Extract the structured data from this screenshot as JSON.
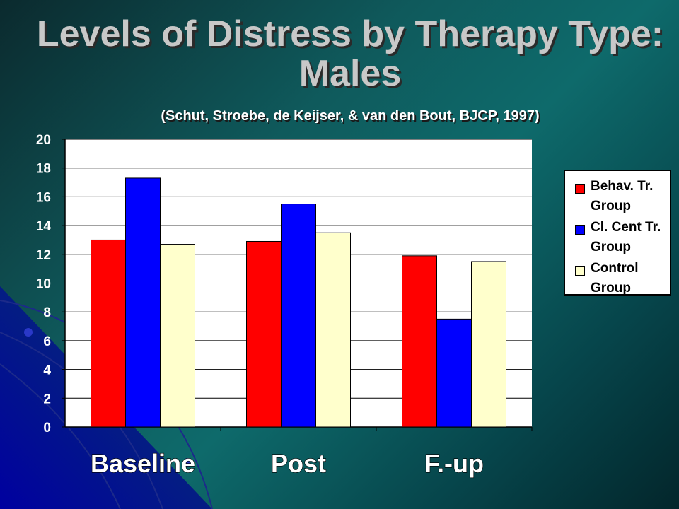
{
  "slide": {
    "title": "Levels of Distress by Therapy Type: Males",
    "subtitle": "(Schut, Stroebe, de Keijser, & van den Bout, BJCP, 1997)"
  },
  "chart_data": {
    "type": "bar",
    "categories": [
      "Baseline",
      "Post",
      "F.-up"
    ],
    "series": [
      {
        "name": "Behav. Tr. Group",
        "values": [
          13.0,
          12.9,
          11.9
        ],
        "color": "#ff0000"
      },
      {
        "name": "Cl. Cent Tr. Group",
        "values": [
          17.3,
          15.5,
          7.5
        ],
        "color": "#0000ff"
      },
      {
        "name": "Control Group",
        "values": [
          12.7,
          13.5,
          11.5
        ],
        "color": "#ffffcc"
      }
    ],
    "ylim": [
      0,
      20
    ],
    "yticks": [
      0,
      2,
      4,
      6,
      8,
      10,
      12,
      14,
      16,
      18,
      20
    ],
    "grid": true,
    "legend_position": "right",
    "plot_background": "#ffffff"
  }
}
